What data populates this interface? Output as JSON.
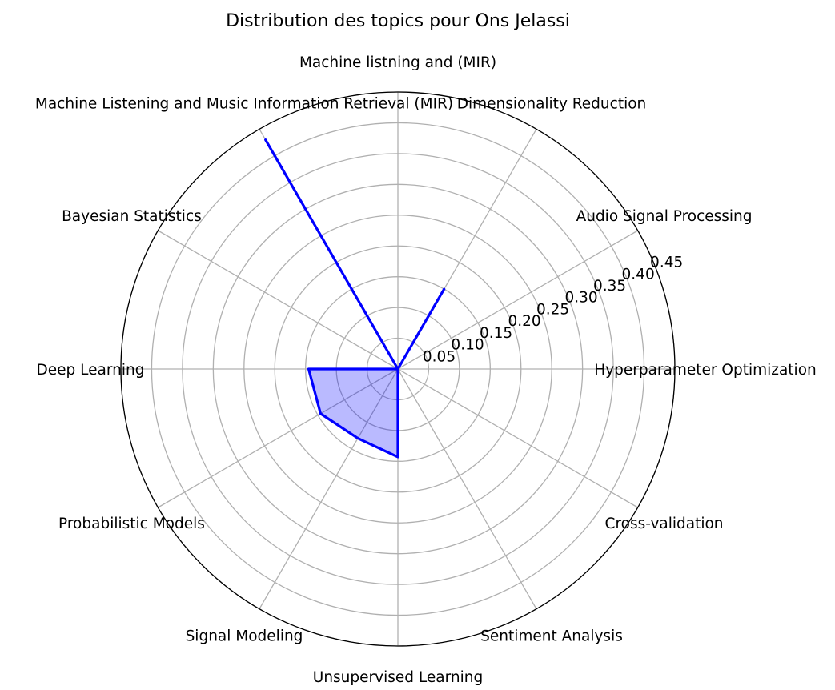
{
  "chart_data": {
    "type": "radar",
    "title": "Distribution des topics pour Ons Jelassi",
    "categories": [
      "Hyperparameter Optimization",
      "Audio Signal Processing",
      "Dimensionality Reduction",
      "Machine listning and (MIR)",
      "Machine Listening and Music Information Retrieval (MIR)",
      "Bayesian Statistics",
      "Deep Learning",
      "Probabilistic Models",
      "Signal Modeling",
      "Unsupervised Learning",
      "Sentiment Analysis",
      "Cross-validation"
    ],
    "series": [
      {
        "values": [
          0.0,
          0.0,
          0.15,
          0.0,
          0.43,
          0.0,
          0.145,
          0.145,
          0.13,
          0.143,
          0.0,
          0.0
        ],
        "color": "#0000ff"
      }
    ],
    "radial_ticks": [
      "0.05",
      "0.10",
      "0.15",
      "0.20",
      "0.25",
      "0.30",
      "0.35",
      "0.40",
      "0.45"
    ],
    "rlim": [
      0,
      0.45
    ],
    "grid": true
  }
}
